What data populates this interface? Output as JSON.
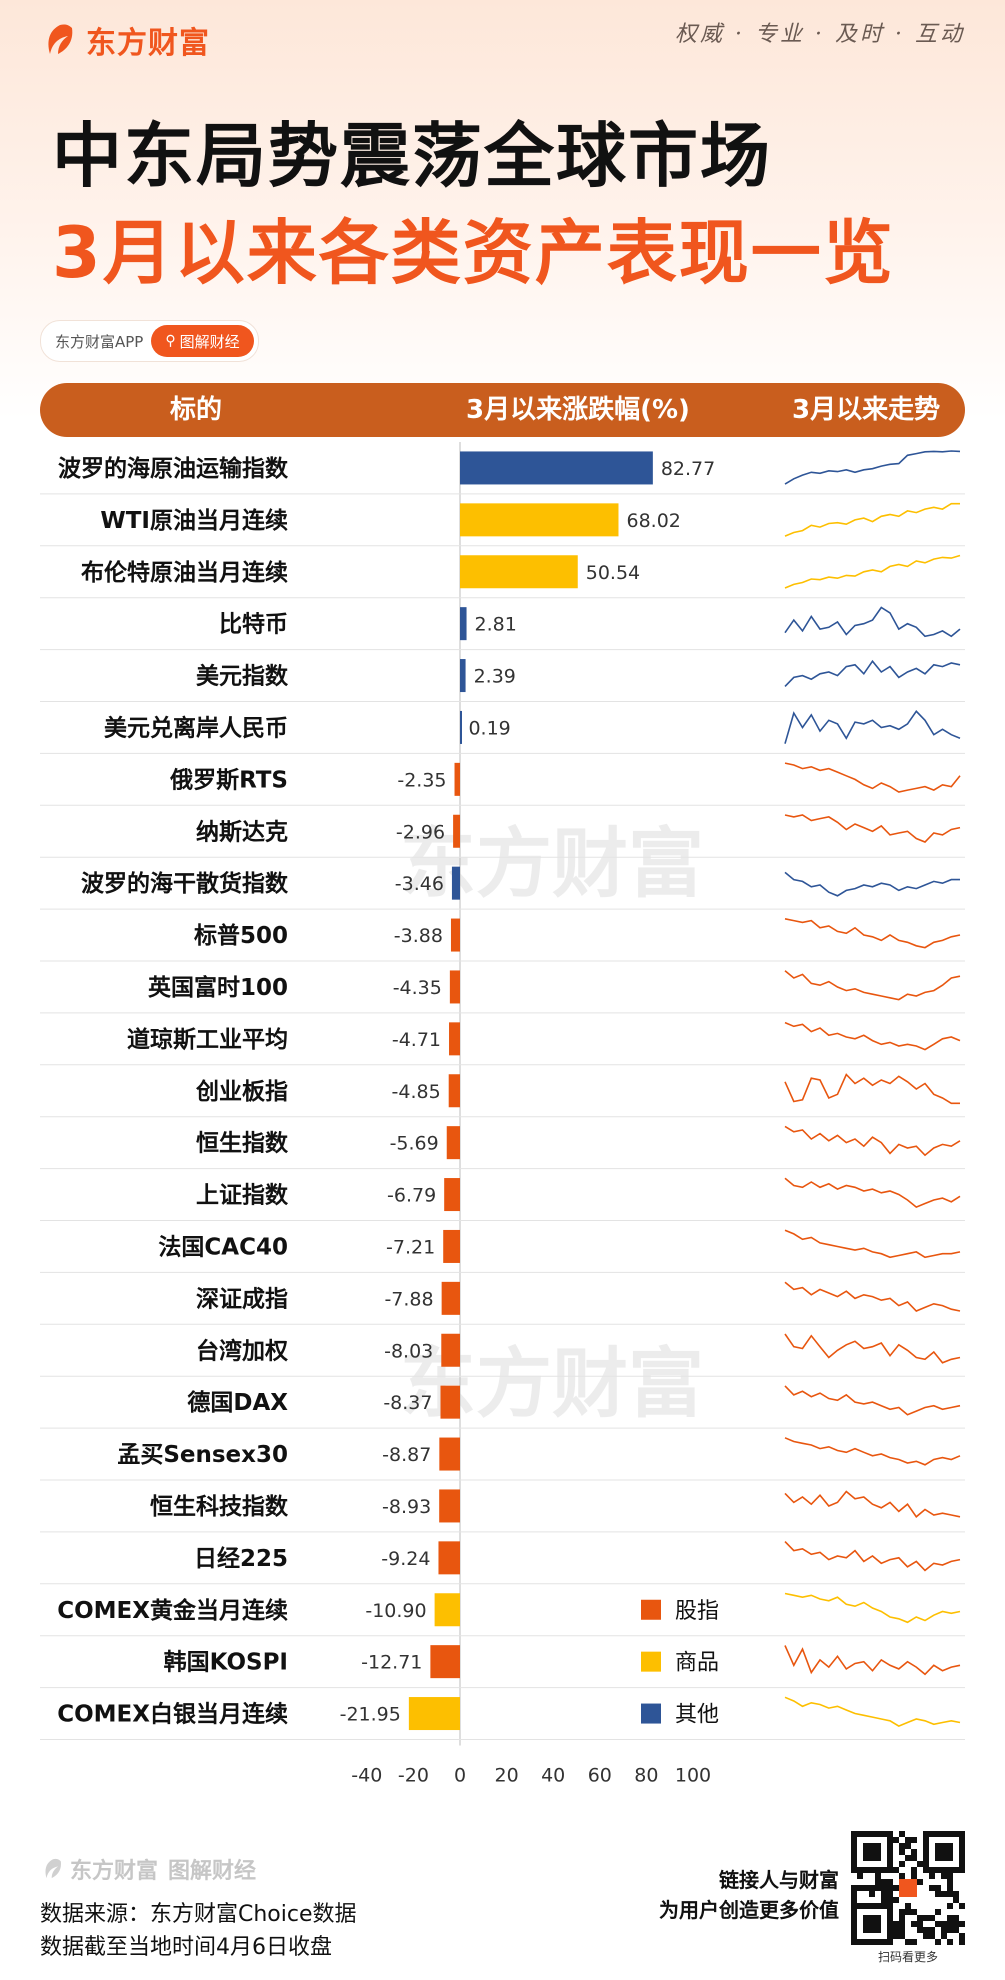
{
  "brand": {
    "name": "东方财富",
    "slogan": "权威 · 专业 · 及时 · 互动",
    "app_name": "东方财富APP",
    "column_tag": "图解财经",
    "primary_color": "#f0561e",
    "header_color": "#c95e1e"
  },
  "title": {
    "line1": "中东局势震荡全球市场",
    "line2": "3月以来各类资产表现一览"
  },
  "table_header": {
    "target": "标的",
    "change": "3月以来涨跌幅(%)",
    "trend": "3月以来走势"
  },
  "chart_data": {
    "type": "bar",
    "orientation": "horizontal",
    "xlim": [
      -40,
      100
    ],
    "xticks": [
      -40,
      -20,
      0,
      20,
      40,
      60,
      80,
      100
    ],
    "categories": [
      "波罗的海原油运输指数",
      "WTI原油当月连续",
      "布伦特原油当月连续",
      "比特币",
      "美元指数",
      "美元兑离岸人民币",
      "俄罗斯RTS",
      "纳斯达克",
      "波罗的海干散货指数",
      "标普500",
      "英国富时100",
      "道琼斯工业平均",
      "创业板指",
      "恒生指数",
      "上证指数",
      "法国CAC40",
      "深证成指",
      "台湾加权",
      "德国DAX",
      "孟买Sensex30",
      "恒生科技指数",
      "日经225",
      "COMEX黄金当月连续",
      "韩国KOSPI",
      "COMEX白银当月连续"
    ],
    "values": [
      82.77,
      68.02,
      50.54,
      2.81,
      2.39,
      0.19,
      -2.35,
      -2.96,
      -3.46,
      -3.88,
      -4.35,
      -4.71,
      -4.85,
      -5.69,
      -6.79,
      -7.21,
      -7.88,
      -8.03,
      -8.37,
      -8.87,
      -8.93,
      -9.24,
      -10.9,
      -12.71,
      -21.95
    ],
    "value_labels": [
      "82.77",
      "68.02",
      "50.54",
      "2.81",
      "2.39",
      "0.19",
      "-2.35",
      "-2.96",
      "-3.46",
      "-3.88",
      "-4.35",
      "-4.71",
      "-4.85",
      "-5.69",
      "-6.79",
      "-7.21",
      "-7.88",
      "-8.03",
      "-8.37",
      "-8.87",
      "-8.93",
      "-9.24",
      "-10.90",
      "-12.71",
      "-21.95"
    ],
    "groups": [
      "其他",
      "商品",
      "商品",
      "其他",
      "其他",
      "其他",
      "股指",
      "股指",
      "其他",
      "股指",
      "股指",
      "股指",
      "股指",
      "股指",
      "股指",
      "股指",
      "股指",
      "股指",
      "股指",
      "股指",
      "股指",
      "股指",
      "商品",
      "股指",
      "商品"
    ],
    "legend": [
      {
        "name": "股指",
        "color": "#e8560f"
      },
      {
        "name": "商品",
        "color": "#fdbf00"
      },
      {
        "name": "其他",
        "color": "#2e5597"
      }
    ],
    "legend_position": "bottom-right",
    "trend_sparklines": [
      [
        0.05,
        0.2,
        0.3,
        0.38,
        0.35,
        0.42,
        0.4,
        0.45,
        0.38,
        0.45,
        0.48,
        0.55,
        0.6,
        0.62,
        0.85,
        0.9,
        0.95,
        0.96,
        0.95,
        0.97,
        0.96
      ],
      [
        0.05,
        0.15,
        0.2,
        0.35,
        0.3,
        0.4,
        0.42,
        0.38,
        0.5,
        0.55,
        0.45,
        0.6,
        0.65,
        0.6,
        0.75,
        0.7,
        0.8,
        0.85,
        0.8,
        0.95,
        0.95
      ],
      [
        0.05,
        0.15,
        0.2,
        0.3,
        0.28,
        0.35,
        0.32,
        0.4,
        0.38,
        0.5,
        0.55,
        0.5,
        0.65,
        0.7,
        0.65,
        0.8,
        0.75,
        0.85,
        0.9,
        0.88,
        0.95
      ],
      [
        0.25,
        0.6,
        0.3,
        0.7,
        0.35,
        0.4,
        0.55,
        0.2,
        0.45,
        0.5,
        0.6,
        0.95,
        0.8,
        0.35,
        0.5,
        0.4,
        0.15,
        0.2,
        0.3,
        0.15,
        0.35
      ],
      [
        0.2,
        0.45,
        0.5,
        0.4,
        0.55,
        0.6,
        0.5,
        0.75,
        0.8,
        0.55,
        0.9,
        0.6,
        0.75,
        0.45,
        0.6,
        0.7,
        0.55,
        0.8,
        0.75,
        0.85,
        0.8
      ],
      [
        0.05,
        0.9,
        0.5,
        0.85,
        0.4,
        0.7,
        0.6,
        0.2,
        0.65,
        0.6,
        0.7,
        0.5,
        0.55,
        0.45,
        0.6,
        0.95,
        0.7,
        0.3,
        0.45,
        0.3,
        0.2
      ],
      [
        0.95,
        0.9,
        0.8,
        0.85,
        0.75,
        0.8,
        0.7,
        0.6,
        0.5,
        0.35,
        0.25,
        0.4,
        0.3,
        0.15,
        0.2,
        0.25,
        0.3,
        0.2,
        0.35,
        0.3,
        0.6
      ],
      [
        0.95,
        0.9,
        0.95,
        0.8,
        0.85,
        0.9,
        0.75,
        0.55,
        0.7,
        0.6,
        0.5,
        0.65,
        0.4,
        0.45,
        0.5,
        0.3,
        0.2,
        0.45,
        0.4,
        0.55,
        0.6
      ],
      [
        0.8,
        0.6,
        0.55,
        0.4,
        0.45,
        0.25,
        0.15,
        0.3,
        0.35,
        0.45,
        0.4,
        0.5,
        0.45,
        0.3,
        0.4,
        0.35,
        0.45,
        0.55,
        0.5,
        0.6,
        0.6
      ],
      [
        0.95,
        0.9,
        0.85,
        0.9,
        0.7,
        0.75,
        0.6,
        0.55,
        0.7,
        0.5,
        0.45,
        0.35,
        0.5,
        0.35,
        0.3,
        0.2,
        0.15,
        0.3,
        0.35,
        0.45,
        0.5
      ],
      [
        0.95,
        0.75,
        0.85,
        0.6,
        0.55,
        0.65,
        0.5,
        0.4,
        0.45,
        0.35,
        0.3,
        0.25,
        0.2,
        0.15,
        0.3,
        0.25,
        0.35,
        0.4,
        0.55,
        0.75,
        0.8
      ],
      [
        0.95,
        0.85,
        0.9,
        0.7,
        0.8,
        0.6,
        0.65,
        0.55,
        0.5,
        0.6,
        0.45,
        0.35,
        0.4,
        0.3,
        0.35,
        0.3,
        0.2,
        0.35,
        0.5,
        0.55,
        0.45
      ],
      [
        0.75,
        0.2,
        0.25,
        0.85,
        0.8,
        0.3,
        0.4,
        0.95,
        0.7,
        0.85,
        0.65,
        0.8,
        0.7,
        0.9,
        0.75,
        0.55,
        0.7,
        0.4,
        0.3,
        0.15,
        0.15
      ],
      [
        0.95,
        0.8,
        0.85,
        0.6,
        0.75,
        0.55,
        0.7,
        0.5,
        0.6,
        0.4,
        0.65,
        0.5,
        0.2,
        0.45,
        0.35,
        0.4,
        0.15,
        0.35,
        0.45,
        0.4,
        0.55
      ],
      [
        0.95,
        0.75,
        0.7,
        0.85,
        0.7,
        0.8,
        0.65,
        0.75,
        0.7,
        0.6,
        0.65,
        0.55,
        0.6,
        0.5,
        0.35,
        0.15,
        0.25,
        0.35,
        0.4,
        0.3,
        0.45
      ],
      [
        0.95,
        0.85,
        0.7,
        0.75,
        0.6,
        0.55,
        0.5,
        0.45,
        0.4,
        0.45,
        0.35,
        0.3,
        0.2,
        0.25,
        0.3,
        0.35,
        0.2,
        0.25,
        0.3,
        0.3,
        0.35
      ],
      [
        0.95,
        0.75,
        0.8,
        0.6,
        0.75,
        0.65,
        0.55,
        0.7,
        0.5,
        0.6,
        0.55,
        0.45,
        0.5,
        0.3,
        0.4,
        0.15,
        0.25,
        0.35,
        0.3,
        0.2,
        0.15
      ],
      [
        0.95,
        0.6,
        0.55,
        0.9,
        0.6,
        0.3,
        0.5,
        0.65,
        0.75,
        0.55,
        0.6,
        0.7,
        0.35,
        0.65,
        0.5,
        0.3,
        0.25,
        0.45,
        0.15,
        0.25,
        0.3
      ],
      [
        0.95,
        0.7,
        0.8,
        0.65,
        0.75,
        0.6,
        0.55,
        0.7,
        0.5,
        0.45,
        0.5,
        0.4,
        0.3,
        0.35,
        0.15,
        0.25,
        0.35,
        0.4,
        0.3,
        0.35,
        0.4
      ],
      [
        0.95,
        0.85,
        0.8,
        0.75,
        0.65,
        0.7,
        0.6,
        0.55,
        0.65,
        0.55,
        0.45,
        0.5,
        0.4,
        0.35,
        0.25,
        0.3,
        0.2,
        0.35,
        0.4,
        0.35,
        0.45
      ],
      [
        0.85,
        0.6,
        0.75,
        0.55,
        0.8,
        0.5,
        0.6,
        0.9,
        0.7,
        0.75,
        0.55,
        0.45,
        0.6,
        0.35,
        0.55,
        0.2,
        0.4,
        0.25,
        0.3,
        0.25,
        0.2
      ],
      [
        0.95,
        0.7,
        0.75,
        0.6,
        0.65,
        0.45,
        0.55,
        0.5,
        0.7,
        0.4,
        0.55,
        0.35,
        0.45,
        0.5,
        0.25,
        0.4,
        0.15,
        0.35,
        0.3,
        0.4,
        0.45
      ],
      [
        0.95,
        0.9,
        0.85,
        0.9,
        0.8,
        0.75,
        0.85,
        0.65,
        0.6,
        0.7,
        0.55,
        0.45,
        0.3,
        0.25,
        0.15,
        0.3,
        0.2,
        0.35,
        0.45,
        0.4,
        0.45
      ],
      [
        0.95,
        0.4,
        0.85,
        0.2,
        0.55,
        0.35,
        0.65,
        0.3,
        0.45,
        0.5,
        0.25,
        0.55,
        0.4,
        0.3,
        0.5,
        0.35,
        0.15,
        0.4,
        0.25,
        0.35,
        0.4
      ],
      [
        0.95,
        0.85,
        0.7,
        0.8,
        0.75,
        0.65,
        0.7,
        0.6,
        0.5,
        0.45,
        0.4,
        0.35,
        0.3,
        0.15,
        0.25,
        0.35,
        0.3,
        0.2,
        0.25,
        0.3,
        0.25
      ]
    ]
  },
  "footer": {
    "logo_text": "东方财富",
    "column_tag": "图解财经",
    "source": "数据来源：东方财富Choice数据",
    "cutoff": "数据截至当地时间4月6日收盘",
    "qr_line1": "链接人与财富",
    "qr_line2": "为用户创造更多价值",
    "qr_caption": "扫码看更多"
  },
  "watermark": "东方财富"
}
